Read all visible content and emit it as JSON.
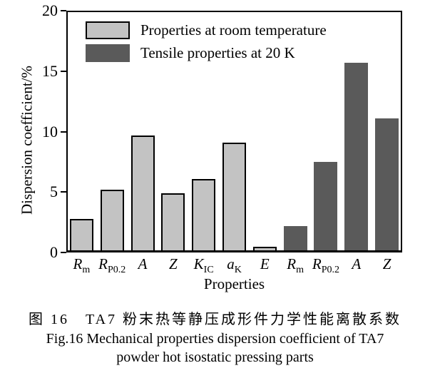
{
  "figure": {
    "caption_zh": "图 16　TA7 粉末热等静压成形件力学性能离散系数",
    "caption_en_line1": "Fig.16 Mechanical properties dispersion coefficient of TA7",
    "caption_en_line2": "powder hot isostatic pressing parts"
  },
  "chart_data": {
    "type": "bar",
    "title": "",
    "xlabel": "Properties",
    "ylabel": "Dispersion coefficient/%",
    "ylim": [
      0,
      20
    ],
    "yticks": [
      0,
      5,
      10,
      15,
      20
    ],
    "grid": false,
    "legend_position": "top-left-inside",
    "axis_color": "#000000",
    "categories": [
      {
        "main": "R",
        "sub": "m"
      },
      {
        "main": "R",
        "sub": "P0.2"
      },
      {
        "main": "A",
        "sub": ""
      },
      {
        "main": "Z",
        "sub": ""
      },
      {
        "main": "K",
        "sub": "IC"
      },
      {
        "main": "a",
        "sub": "K"
      },
      {
        "main": "E",
        "sub": ""
      },
      {
        "main": "R",
        "sub": "m"
      },
      {
        "main": "R",
        "sub": "P0.2"
      },
      {
        "main": "A",
        "sub": ""
      },
      {
        "main": "Z",
        "sub": ""
      }
    ],
    "series": [
      {
        "name": "Properties at room temperature",
        "color": "#c3c3c3",
        "border_color": "#000000",
        "values": [
          2.6,
          5.0,
          9.5,
          4.7,
          5.9,
          8.9,
          0.3,
          null,
          null,
          null,
          null
        ]
      },
      {
        "name": "Tensile properties at 20 K",
        "color": "#5a5a5a",
        "border_color": "#5a5a5a",
        "values": [
          null,
          null,
          null,
          null,
          null,
          null,
          null,
          2.0,
          7.3,
          15.5,
          10.9
        ]
      }
    ]
  }
}
